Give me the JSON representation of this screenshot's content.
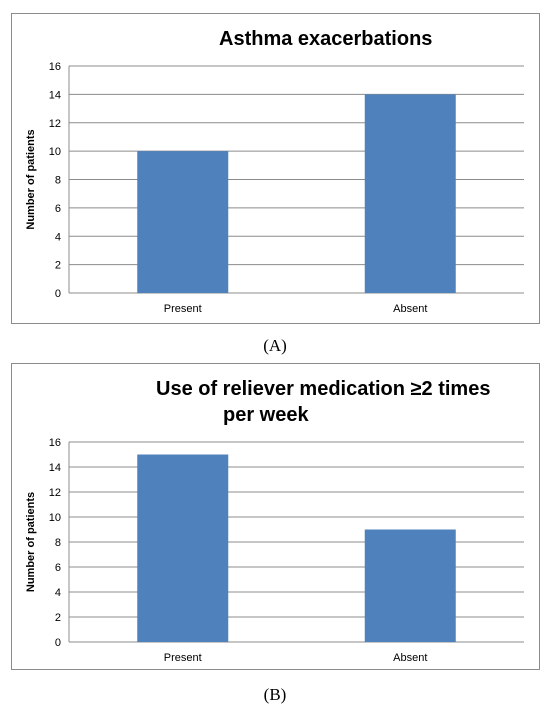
{
  "chart_data": [
    {
      "type": "bar",
      "title": "Asthma exacerbations",
      "panel_label": "(A)",
      "categories": [
        "Present",
        "Absent"
      ],
      "values": [
        10,
        14
      ],
      "ylabel": "Number of patients",
      "ylim": [
        0,
        16
      ],
      "yticks": [
        "0",
        "2",
        "4",
        "6",
        "8",
        "10",
        "12",
        "14",
        "16"
      ],
      "grid": true,
      "bar_color": "#4f81bd"
    },
    {
      "type": "bar",
      "title": "Use of reliever medication ≥2 times per week",
      "title_lines": [
        "Use of reliever medication ≥2 times",
        "per week"
      ],
      "panel_label": "(B)",
      "categories": [
        "Present",
        "Absent"
      ],
      "values": [
        15,
        9
      ],
      "ylabel": "Number of patients",
      "ylim": [
        0,
        16
      ],
      "yticks": [
        "0",
        "2",
        "4",
        "6",
        "8",
        "10",
        "12",
        "14",
        "16"
      ],
      "grid": true,
      "bar_color": "#4f81bd"
    }
  ]
}
